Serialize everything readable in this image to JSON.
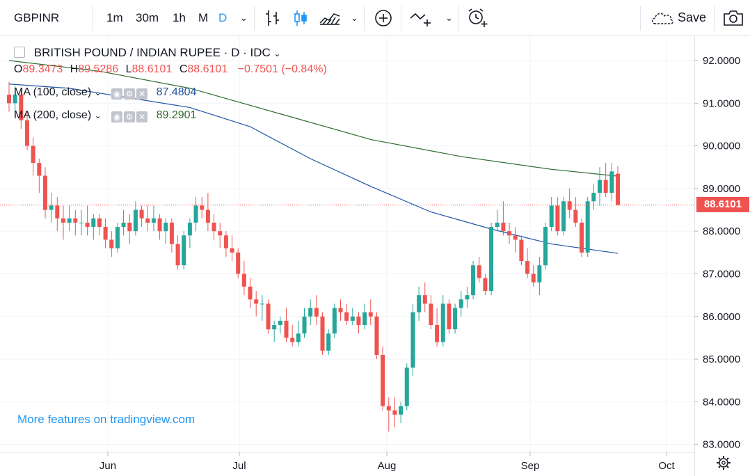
{
  "toolbar": {
    "symbol": "GBPINR",
    "intervals": [
      "1m",
      "30m",
      "1h",
      "M",
      "D"
    ],
    "active_interval": "D",
    "save_label": "Save"
  },
  "legend": {
    "title": "BRITISH POUND / INDIAN RUPEE · D · IDC",
    "o_label": "O",
    "o": "89.3473",
    "h_label": "H",
    "h": "89.5286",
    "l_label": "L",
    "l": "88.6101",
    "c_label": "C",
    "c": "88.6101",
    "change": "−0.7501 (−0.84%)",
    "ma100_label": "MA (100, close)",
    "ma100_value": "87.4804",
    "ma200_label": "MA (200, close)",
    "ma200_value": "89.2901"
  },
  "last_price": "88.6101",
  "watermark": "More features on tradingview.com",
  "colors": {
    "up": "#26a69a",
    "down": "#ef5350",
    "ma100": "#1e53a5",
    "ma200": "#2e6b2e",
    "accent": "#2196f3"
  },
  "chart_data": {
    "type": "candlestick",
    "y_ticks": [
      "92.0000",
      "91.0000",
      "90.0000",
      "89.0000",
      "88.0000",
      "87.0000",
      "86.0000",
      "85.0000",
      "84.0000",
      "83.0000"
    ],
    "x_ticks": [
      "Jun",
      "Jul",
      "Aug",
      "Sep",
      "Oct"
    ],
    "ylim": [
      82.8,
      92.6
    ],
    "grid": true,
    "candles": [
      [
        91.2,
        91.5,
        90.8,
        91.0
      ],
      [
        91.0,
        91.4,
        90.7,
        91.2
      ],
      [
        91.2,
        91.3,
        90.4,
        90.6
      ],
      [
        90.6,
        90.8,
        89.9,
        90.0
      ],
      [
        90.0,
        90.2,
        89.3,
        89.6
      ],
      [
        89.6,
        89.7,
        88.9,
        89.3
      ],
      [
        89.3,
        89.5,
        88.3,
        88.5
      ],
      [
        88.5,
        88.9,
        88.2,
        88.6
      ],
      [
        88.6,
        88.8,
        88.0,
        88.3
      ],
      [
        88.3,
        88.6,
        87.8,
        88.2
      ],
      [
        88.2,
        88.6,
        88.0,
        88.3
      ],
      [
        88.3,
        88.5,
        87.9,
        88.2
      ],
      [
        88.2,
        88.5,
        87.9,
        88.2
      ],
      [
        88.2,
        88.6,
        87.9,
        88.1
      ],
      [
        88.1,
        88.4,
        87.8,
        88.3
      ],
      [
        88.3,
        88.4,
        87.9,
        88.1
      ],
      [
        88.1,
        88.3,
        87.6,
        87.8
      ],
      [
        87.8,
        88.0,
        87.4,
        87.6
      ],
      [
        87.6,
        88.2,
        87.5,
        88.1
      ],
      [
        88.1,
        88.5,
        87.9,
        88.2
      ],
      [
        88.2,
        88.4,
        87.7,
        88.0
      ],
      [
        88.0,
        88.7,
        87.9,
        88.5
      ],
      [
        88.5,
        88.6,
        88.1,
        88.3
      ],
      [
        88.3,
        88.6,
        88.0,
        88.2
      ],
      [
        88.2,
        88.6,
        88.0,
        88.3
      ],
      [
        88.3,
        88.4,
        87.8,
        88.0
      ],
      [
        88.0,
        88.3,
        87.7,
        88.2
      ],
      [
        88.2,
        88.3,
        87.5,
        87.7
      ],
      [
        87.7,
        87.9,
        87.1,
        87.2
      ],
      [
        87.2,
        88.0,
        87.1,
        87.9
      ],
      [
        87.9,
        88.3,
        87.6,
        88.2
      ],
      [
        88.2,
        88.8,
        88.0,
        88.6
      ],
      [
        88.6,
        88.8,
        88.3,
        88.5
      ],
      [
        88.5,
        88.9,
        88.0,
        88.2
      ],
      [
        88.2,
        88.4,
        87.8,
        88.0
      ],
      [
        88.0,
        88.2,
        87.6,
        87.9
      ],
      [
        87.9,
        88.0,
        87.4,
        87.6
      ],
      [
        87.6,
        87.9,
        87.3,
        87.5
      ],
      [
        87.5,
        87.6,
        86.9,
        87.0
      ],
      [
        87.0,
        87.3,
        86.5,
        86.7
      ],
      [
        86.7,
        86.9,
        86.2,
        86.4
      ],
      [
        86.4,
        86.6,
        86.0,
        86.3
      ],
      [
        86.3,
        86.5,
        85.9,
        86.3
      ],
      [
        86.3,
        86.4,
        85.6,
        85.7
      ],
      [
        85.7,
        85.9,
        85.4,
        85.8
      ],
      [
        85.8,
        86.0,
        85.6,
        85.9
      ],
      [
        85.9,
        86.2,
        85.4,
        85.5
      ],
      [
        85.5,
        85.8,
        85.3,
        85.4
      ],
      [
        85.4,
        85.9,
        85.3,
        85.6
      ],
      [
        85.6,
        86.2,
        85.5,
        86.0
      ],
      [
        86.0,
        86.4,
        85.8,
        86.2
      ],
      [
        86.2,
        86.5,
        85.8,
        86.0
      ],
      [
        86.0,
        86.1,
        85.1,
        85.2
      ],
      [
        85.2,
        85.7,
        85.1,
        85.6
      ],
      [
        85.6,
        86.3,
        85.5,
        86.2
      ],
      [
        86.2,
        86.4,
        85.9,
        86.1
      ],
      [
        86.1,
        86.3,
        85.8,
        85.9
      ],
      [
        85.9,
        86.2,
        85.8,
        86.0
      ],
      [
        86.0,
        86.1,
        85.6,
        85.8
      ],
      [
        85.8,
        86.3,
        85.7,
        86.1
      ],
      [
        86.1,
        86.4,
        85.8,
        86.0
      ],
      [
        86.0,
        86.1,
        85.0,
        85.1
      ],
      [
        85.1,
        85.3,
        83.8,
        83.9
      ],
      [
        83.9,
        84.1,
        83.3,
        83.8
      ],
      [
        83.8,
        84.1,
        83.4,
        83.7
      ],
      [
        83.7,
        84.0,
        83.5,
        83.9
      ],
      [
        83.9,
        84.9,
        83.8,
        84.8
      ],
      [
        84.8,
        86.3,
        84.6,
        86.1
      ],
      [
        86.1,
        86.7,
        85.9,
        86.5
      ],
      [
        86.5,
        86.8,
        86.1,
        86.3
      ],
      [
        86.3,
        86.5,
        85.7,
        85.8
      ],
      [
        85.8,
        86.2,
        85.3,
        85.4
      ],
      [
        85.4,
        86.5,
        85.3,
        86.3
      ],
      [
        86.3,
        86.4,
        85.6,
        85.7
      ],
      [
        85.7,
        86.3,
        85.6,
        86.2
      ],
      [
        86.2,
        86.6,
        86.0,
        86.4
      ],
      [
        86.4,
        86.7,
        86.2,
        86.5
      ],
      [
        86.5,
        87.3,
        86.4,
        87.2
      ],
      [
        87.2,
        87.4,
        86.8,
        86.9
      ],
      [
        86.9,
        87.0,
        86.5,
        86.6
      ],
      [
        86.6,
        88.2,
        86.5,
        88.1
      ],
      [
        88.1,
        88.5,
        88.0,
        88.2
      ],
      [
        88.2,
        88.7,
        87.9,
        88.0
      ],
      [
        88.0,
        88.2,
        87.7,
        87.9
      ],
      [
        87.9,
        88.1,
        87.5,
        87.8
      ],
      [
        87.8,
        87.9,
        87.2,
        87.3
      ],
      [
        87.3,
        87.6,
        86.9,
        87.0
      ],
      [
        87.0,
        87.2,
        86.7,
        86.8
      ],
      [
        86.8,
        87.4,
        86.5,
        87.2
      ],
      [
        87.2,
        88.2,
        87.1,
        88.1
      ],
      [
        88.1,
        88.8,
        88.0,
        88.6
      ],
      [
        88.6,
        88.8,
        87.9,
        88.0
      ],
      [
        88.0,
        88.8,
        87.9,
        88.7
      ],
      [
        88.7,
        89.0,
        88.3,
        88.5
      ],
      [
        88.5,
        88.8,
        88.1,
        88.2
      ],
      [
        88.2,
        88.3,
        87.4,
        87.5
      ],
      [
        87.5,
        88.8,
        87.4,
        88.7
      ],
      [
        88.7,
        89.1,
        88.5,
        88.9
      ],
      [
        88.9,
        89.5,
        88.6,
        89.2
      ],
      [
        89.2,
        89.6,
        88.8,
        88.9
      ],
      [
        88.9,
        89.6,
        88.7,
        89.4
      ],
      [
        89.3473,
        89.5286,
        88.6101,
        88.6101
      ]
    ],
    "ma100": [
      [
        0,
        91.45
      ],
      [
        10,
        91.35
      ],
      [
        30,
        90.9
      ],
      [
        40,
        90.45
      ],
      [
        50,
        89.7
      ],
      [
        60,
        89.05
      ],
      [
        70,
        88.45
      ],
      [
        80,
        88.05
      ],
      [
        90,
        87.7
      ],
      [
        101,
        87.4804
      ]
    ],
    "ma200": [
      [
        0,
        92.0
      ],
      [
        15,
        91.75
      ],
      [
        30,
        91.35
      ],
      [
        45,
        90.75
      ],
      [
        60,
        90.15
      ],
      [
        75,
        89.75
      ],
      [
        90,
        89.45
      ],
      [
        101,
        89.2901
      ]
    ]
  }
}
